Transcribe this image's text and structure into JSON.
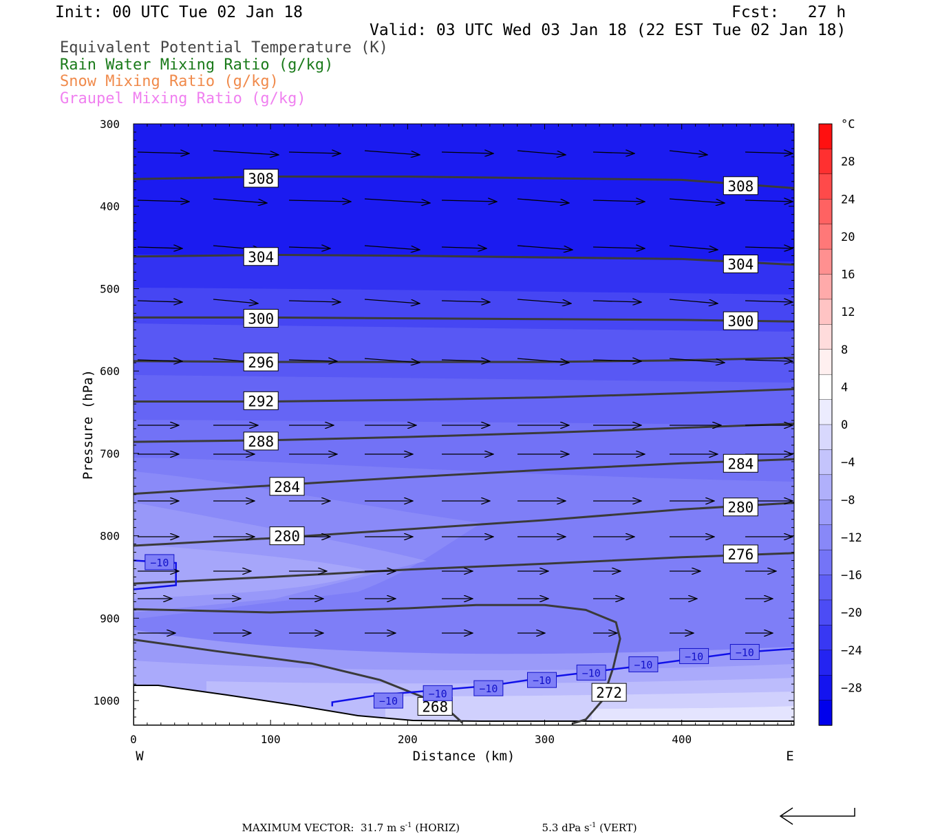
{
  "header": {
    "init": "Init: 00 UTC Tue 02 Jan 18",
    "fcst": "Fcst:   27 h",
    "valid": "Valid: 03 UTC Wed 03 Jan 18 (22 EST Tue 02 Jan 18)"
  },
  "legend": [
    {
      "label": "Equivalent Potential Temperature (K)",
      "color": "#444444"
    },
    {
      "label": "Rain Water Mixing Ratio (g/kg)",
      "color": "#1a7a1a"
    },
    {
      "label": "Snow Mixing Ratio (g/kg)",
      "color": "#f08a4b"
    },
    {
      "label": "Graupel Mixing Ratio (g/kg)",
      "color": "#f080f0"
    }
  ],
  "chart_data": {
    "type": "cross-section",
    "xlabel": "Distance (km)",
    "ylabel": "Pressure (hPa)",
    "xlim": [
      0,
      482
    ],
    "ylim": [
      1030,
      300
    ],
    "x_ticks": [
      0,
      100,
      200,
      300,
      400
    ],
    "y_ticks": [
      300,
      400,
      500,
      600,
      700,
      800,
      900,
      1000
    ],
    "x_end_labels": {
      "left": "W",
      "right": "E"
    },
    "theta_e_contours": [
      {
        "value": 308,
        "points": [
          [
            0,
            367
          ],
          [
            100,
            364
          ],
          [
            200,
            364
          ],
          [
            300,
            366
          ],
          [
            400,
            368
          ],
          [
            482,
            378
          ]
        ],
        "labels": [
          [
            93,
            366
          ],
          [
            443,
            375
          ]
        ]
      },
      {
        "value": 304,
        "points": [
          [
            0,
            461
          ],
          [
            100,
            459
          ],
          [
            200,
            460
          ],
          [
            300,
            462
          ],
          [
            400,
            464
          ],
          [
            482,
            471
          ]
        ],
        "labels": [
          [
            93,
            461
          ],
          [
            443,
            470
          ]
        ]
      },
      {
        "value": 300,
        "points": [
          [
            0,
            535
          ],
          [
            100,
            535
          ],
          [
            200,
            536
          ],
          [
            300,
            537
          ],
          [
            400,
            538
          ],
          [
            482,
            540
          ]
        ],
        "labels": [
          [
            93,
            536
          ],
          [
            443,
            539
          ]
        ]
      },
      {
        "value": 296,
        "points": [
          [
            0,
            588
          ],
          [
            100,
            589
          ],
          [
            200,
            589
          ],
          [
            300,
            589
          ],
          [
            400,
            587
          ],
          [
            482,
            584
          ]
        ],
        "labels": [
          [
            93,
            589
          ]
        ]
      },
      {
        "value": 292,
        "points": [
          [
            0,
            637
          ],
          [
            100,
            637
          ],
          [
            200,
            635
          ],
          [
            300,
            632
          ],
          [
            400,
            627
          ],
          [
            482,
            622
          ]
        ],
        "labels": [
          [
            93,
            636
          ]
        ]
      },
      {
        "value": 288,
        "points": [
          [
            0,
            686
          ],
          [
            100,
            684
          ],
          [
            200,
            680
          ],
          [
            300,
            675
          ],
          [
            400,
            669
          ],
          [
            482,
            664
          ]
        ],
        "labels": [
          [
            93,
            685
          ]
        ]
      },
      {
        "value": 284,
        "points": [
          [
            0,
            749
          ],
          [
            100,
            739
          ],
          [
            200,
            729
          ],
          [
            300,
            720
          ],
          [
            400,
            712
          ],
          [
            482,
            707
          ]
        ],
        "labels": [
          [
            112,
            740
          ],
          [
            443,
            712
          ]
        ]
      },
      {
        "value": 280,
        "points": [
          [
            0,
            812
          ],
          [
            100,
            803
          ],
          [
            200,
            792
          ],
          [
            300,
            781
          ],
          [
            400,
            768
          ],
          [
            482,
            760
          ]
        ],
        "labels": [
          [
            112,
            800
          ],
          [
            443,
            765
          ]
        ]
      },
      {
        "value": 276,
        "points": [
          [
            0,
            858
          ],
          [
            100,
            850
          ],
          [
            200,
            841
          ],
          [
            300,
            834
          ],
          [
            400,
            826
          ],
          [
            482,
            821
          ]
        ],
        "labels": [
          [
            443,
            822
          ]
        ]
      },
      {
        "value": 272,
        "points": [
          [
            0,
            889
          ],
          [
            100,
            893
          ],
          [
            200,
            888
          ],
          [
            250,
            884
          ],
          [
            300,
            884
          ],
          [
            330,
            890
          ],
          [
            352,
            905
          ],
          [
            355,
            925
          ],
          [
            350,
            960
          ],
          [
            342,
            1000
          ],
          [
            330,
            1023
          ],
          [
            320,
            1028
          ]
        ],
        "labels": [
          [
            347,
            990
          ]
        ]
      },
      {
        "value": 268,
        "points": [
          [
            0,
            926
          ],
          [
            60,
            940
          ],
          [
            130,
            955
          ],
          [
            180,
            975
          ],
          [
            210,
            995
          ],
          [
            230,
            1012
          ],
          [
            240,
            1027
          ]
        ],
        "labels": [
          [
            220,
            1007
          ]
        ]
      }
    ],
    "temperature_contours": [
      {
        "value": -10,
        "color": "#1010e8",
        "points": [
          [
            0,
            830
          ],
          [
            31,
            833
          ],
          [
            31,
            860
          ],
          [
            0,
            865
          ]
        ],
        "labels": [
          [
            19,
            832
          ]
        ]
      },
      {
        "value": -10,
        "color": "#1010e8",
        "points": [
          [
            145,
            1007
          ],
          [
            145,
            1002
          ],
          [
            180,
            993
          ],
          [
            260,
            982
          ],
          [
            300,
            972
          ],
          [
            360,
            960
          ],
          [
            440,
            942
          ],
          [
            482,
            937
          ]
        ],
        "labels": [
          [
            186,
            1000
          ],
          [
            222,
            991
          ],
          [
            259,
            985
          ],
          [
            298,
            975
          ],
          [
            334,
            966
          ],
          [
            372,
            956
          ],
          [
            409,
            946
          ],
          [
            446,
            941
          ]
        ]
      }
    ],
    "colorbar": {
      "unit": "°C",
      "ticks": [
        28,
        24,
        20,
        16,
        12,
        8,
        4,
        0,
        -4,
        -8,
        -12,
        -16,
        -20,
        -24,
        -28
      ],
      "tick_labels": [
        "28",
        "24",
        "20",
        "16",
        "12",
        "8",
        "4",
        "0",
        "−4",
        "−8",
        "−12",
        "−16",
        "−20",
        "−24",
        "−28"
      ],
      "range": [
        -32,
        32
      ]
    }
  },
  "footer": {
    "label": "MAXIMUM VECTOR:",
    "horiz_value": "31.7 m s",
    "horiz_exp": "-1",
    "horiz_tag": "(HORIZ)",
    "vert_value": "5.3 dPa s",
    "vert_exp": "-1",
    "vert_tag": "(VERT)"
  }
}
